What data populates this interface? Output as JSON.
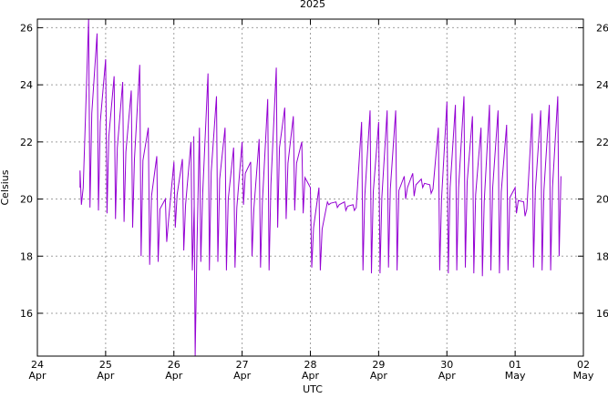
{
  "chart_data": {
    "type": "line",
    "title": "2025",
    "xlabel": "UTC",
    "ylabel": "Celsius",
    "grid": true,
    "legend": "none",
    "ylim": [
      14.5,
      26.3
    ],
    "xlim": [
      "2025-04-24 00:00",
      "2025-05-02 00:00"
    ],
    "y_ticks": [
      "16",
      "18",
      "20",
      "22",
      "24",
      "26"
    ],
    "x_ticks": [
      {
        "day": "24",
        "month": "Apr"
      },
      {
        "day": "25",
        "month": "Apr"
      },
      {
        "day": "26",
        "month": "Apr"
      },
      {
        "day": "27",
        "month": "Apr"
      },
      {
        "day": "28",
        "month": "Apr"
      },
      {
        "day": "29",
        "month": "Apr"
      },
      {
        "day": "30",
        "month": "Apr"
      },
      {
        "day": "01",
        "month": "May"
      },
      {
        "day": "02",
        "month": "May"
      }
    ],
    "series": [
      {
        "color": "#9400d3",
        "x": [
          "2025-04-24 15:00",
          "2025-04-24 18:00",
          "2025-04-24 21:00",
          "2025-04-25 00:00",
          "2025-04-25 03:00",
          "2025-04-25 06:00",
          "2025-04-25 09:00",
          "2025-04-25 12:00",
          "2025-04-25 15:00",
          "2025-04-25 18:00",
          "2025-04-25 21:00",
          "2025-04-26 00:00",
          "2025-04-26 03:00",
          "2025-04-26 06:00",
          "2025-04-26 07:00",
          "2025-04-26 09:00",
          "2025-04-26 12:00",
          "2025-04-26 15:00",
          "2025-04-26 18:00",
          "2025-04-26 21:00",
          "2025-04-27 00:00",
          "2025-04-27 03:00",
          "2025-04-27 06:00",
          "2025-04-27 09:00",
          "2025-04-27 12:00",
          "2025-04-27 15:00",
          "2025-04-27 18:00",
          "2025-04-27 21:00",
          "2025-04-28 00:00",
          "2025-04-28 03:00",
          "2025-04-28 06:00",
          "2025-04-28 09:00",
          "2025-04-28 12:00",
          "2025-04-28 15:00",
          "2025-04-28 18:00",
          "2025-04-28 21:00",
          "2025-04-29 00:00",
          "2025-04-29 03:00",
          "2025-04-29 06:00",
          "2025-04-29 09:00",
          "2025-04-29 12:00",
          "2025-04-29 15:00",
          "2025-04-29 18:00",
          "2025-04-29 21:00",
          "2025-04-30 00:00",
          "2025-04-30 03:00",
          "2025-04-30 06:00",
          "2025-04-30 09:00",
          "2025-04-30 12:00",
          "2025-04-30 15:00",
          "2025-04-30 18:00",
          "2025-04-30 21:00",
          "2025-05-01 00:00",
          "2025-05-01 03:00",
          "2025-05-01 06:00",
          "2025-05-01 09:00",
          "2025-05-01 12:00",
          "2025-05-01 15:00"
        ],
        "low": [
          19.8,
          19.7,
          19.6,
          19.5,
          19.3,
          19.2,
          19.0,
          18.0,
          17.7,
          17.8,
          18.5,
          19.0,
          18.2,
          17.5,
          14.5,
          17.8,
          17.5,
          17.8,
          17.5,
          17.6,
          19.8,
          18.0,
          17.6,
          17.5,
          19.0,
          19.3,
          19.6,
          19.5,
          17.6,
          17.5,
          19.8,
          19.7,
          19.6,
          19.6,
          17.5,
          17.4,
          17.4,
          17.6,
          17.5,
          20.0,
          20.1,
          20.4,
          20.2,
          17.5,
          17.4,
          17.5,
          17.6,
          17.4,
          17.3,
          17.5,
          17.4,
          17.5,
          19.5,
          19.4,
          17.6,
          17.5,
          17.5,
          18.0
        ],
        "high": [
          21.0,
          26.3,
          25.8,
          24.9,
          24.3,
          24.1,
          23.8,
          24.7,
          22.5,
          21.5,
          20.0,
          21.3,
          21.4,
          22.0,
          22.2,
          22.5,
          24.4,
          23.6,
          22.5,
          21.8,
          22.0,
          21.3,
          22.1,
          23.5,
          24.6,
          23.2,
          22.9,
          22.0,
          20.4,
          20.4,
          19.9,
          19.9,
          19.9,
          19.8,
          22.7,
          23.1,
          22.7,
          23.1,
          23.1,
          20.8,
          20.9,
          20.7,
          20.5,
          22.5,
          23.4,
          23.3,
          23.6,
          22.9,
          22.5,
          23.3,
          23.1,
          22.6,
          20.4,
          19.9,
          23.0,
          23.1,
          23.3,
          23.6
        ]
      }
    ]
  }
}
